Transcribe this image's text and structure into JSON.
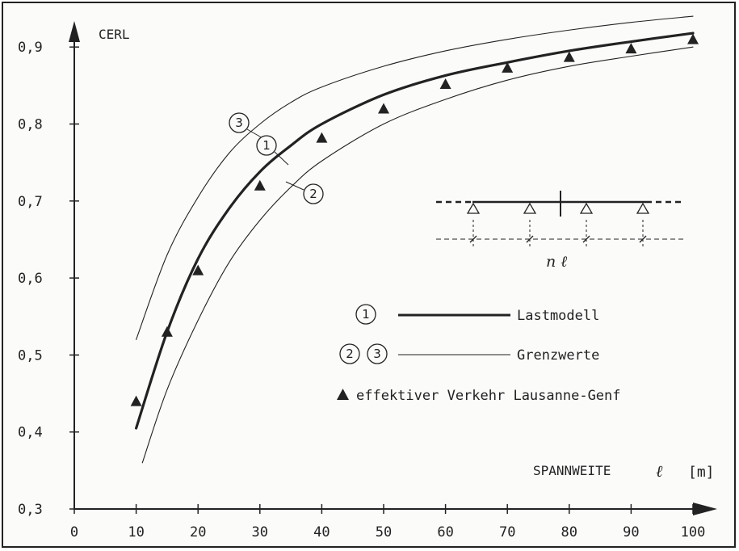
{
  "chart_data": {
    "type": "line",
    "ylabel": "CERL",
    "xlabel": "SPANNWEITE",
    "xlabel_symbol": "ℓ",
    "xlabel_unit": "[m]",
    "xlim": [
      0,
      100
    ],
    "ylim": [
      0.3,
      0.92
    ],
    "x_ticks": [
      0,
      10,
      20,
      30,
      40,
      50,
      60,
      70,
      80,
      90,
      100
    ],
    "x_tick_labels": [
      "0",
      "10",
      "20",
      "30",
      "40",
      "50",
      "60",
      "70",
      "80",
      "90",
      "100"
    ],
    "y_ticks": [
      0.3,
      0.4,
      0.5,
      0.6,
      0.7,
      0.8,
      0.9
    ],
    "y_tick_labels": [
      "0,3",
      "0,4",
      "0,5",
      "0,6",
      "0,7",
      "0,8",
      "0,9"
    ],
    "grid": false,
    "series": [
      {
        "id": "1",
        "label_mark": "1",
        "style": "thick",
        "x": [
          10,
          15,
          20,
          25,
          30,
          35,
          40,
          50,
          60,
          70,
          80,
          90,
          100
        ],
        "y": [
          0.405,
          0.53,
          0.625,
          0.69,
          0.738,
          0.772,
          0.8,
          0.838,
          0.863,
          0.88,
          0.895,
          0.907,
          0.918
        ]
      },
      {
        "id": "2",
        "label_mark": "2",
        "style": "thin",
        "x": [
          11,
          15,
          20,
          25,
          30,
          35,
          40,
          50,
          60,
          70,
          80,
          90,
          100
        ],
        "y": [
          0.36,
          0.455,
          0.545,
          0.62,
          0.675,
          0.718,
          0.752,
          0.8,
          0.832,
          0.857,
          0.875,
          0.888,
          0.9
        ]
      },
      {
        "id": "3",
        "label_mark": "3",
        "style": "thin",
        "x": [
          10,
          15,
          20,
          25,
          30,
          35,
          40,
          50,
          60,
          70,
          80,
          90,
          100
        ],
        "y": [
          0.52,
          0.63,
          0.705,
          0.762,
          0.8,
          0.828,
          0.848,
          0.875,
          0.895,
          0.91,
          0.922,
          0.932,
          0.94
        ]
      },
      {
        "id": "effektiv",
        "type": "scatter",
        "marker": "filled-triangle",
        "x": [
          10,
          15,
          20,
          30,
          40,
          50,
          60,
          70,
          80,
          90,
          100
        ],
        "y": [
          0.44,
          0.53,
          0.61,
          0.72,
          0.782,
          0.82,
          0.852,
          0.873,
          0.887,
          0.898,
          0.91
        ]
      }
    ],
    "legend": [
      {
        "marks": [
          "1"
        ],
        "line": "thick",
        "text": "Lastmodell"
      },
      {
        "marks": [
          "2",
          "3"
        ],
        "line": "thin",
        "text": "Grenzwerte"
      },
      {
        "marks": [],
        "marker": "filled-triangle",
        "text": "effektiver Verkehr Lausanne-Genf"
      }
    ],
    "inset": {
      "label": "n ℓ",
      "supports": 4
    }
  }
}
